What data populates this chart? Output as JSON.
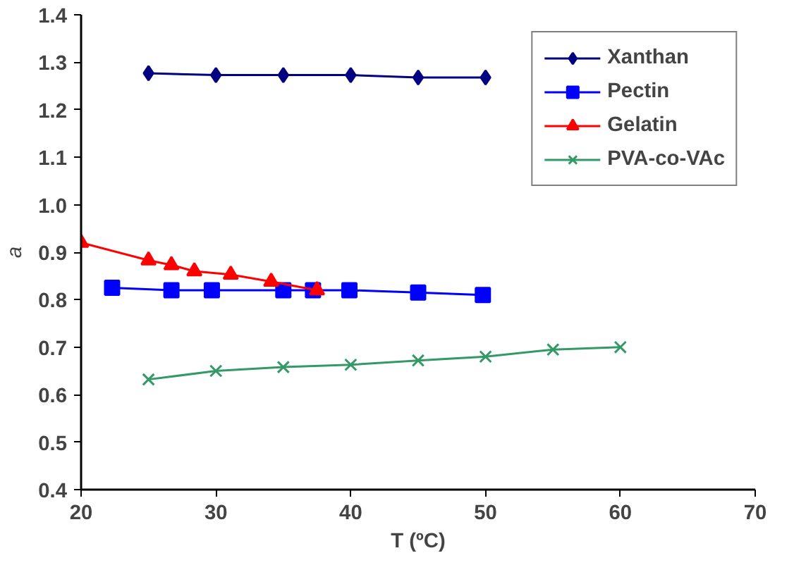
{
  "chart_data": {
    "type": "line",
    "xlabel": "T (ºC)",
    "ylabel": "a",
    "xlim": [
      20,
      70
    ],
    "xticks": [
      20,
      30,
      40,
      50,
      60,
      70
    ],
    "ylim": [
      0.4,
      1.4
    ],
    "yticks": [
      {
        "value": 0.4,
        "label": "0.4"
      },
      {
        "value": 0.5,
        "label": "0.5"
      },
      {
        "value": 0.6,
        "label": "0.6"
      },
      {
        "value": 0.7,
        "label": "0.7"
      },
      {
        "value": 0.8,
        "label": "0.8"
      },
      {
        "value": 0.9,
        "label": "0.9"
      },
      {
        "value": 1.0,
        "label": "1.0"
      },
      {
        "value": 1.1,
        "label": "1.1"
      },
      {
        "value": 1.2,
        "label": "1.2"
      },
      {
        "value": 1.3,
        "label": "1.3"
      },
      {
        "value": 1.4,
        "label": "1.4"
      }
    ],
    "grid": false,
    "legend": "top right",
    "series": [
      {
        "name": "Xanthan",
        "color": "#000080",
        "marker": "diamond",
        "x": [
          25,
          30,
          35,
          40,
          45,
          50
        ],
        "values": [
          1.277,
          1.273,
          1.273,
          1.273,
          1.268,
          1.268
        ]
      },
      {
        "name": "Pectin",
        "color": "#0000ff",
        "marker": "square",
        "x": [
          22.3,
          26.7,
          29.7,
          35,
          37.2,
          39.9,
          45,
          49.8
        ],
        "values": [
          0.825,
          0.82,
          0.82,
          0.82,
          0.82,
          0.82,
          0.815,
          0.81
        ]
      },
      {
        "name": "Gelatin",
        "color": "#ff0000",
        "marker": "triangle",
        "x": [
          20,
          25,
          26.7,
          28.4,
          31.1,
          34.1,
          37.5
        ],
        "values": [
          0.92,
          0.883,
          0.873,
          0.86,
          0.853,
          0.838,
          0.82
        ]
      },
      {
        "name": "PVA-co-VAc",
        "color": "#339966",
        "marker": "cross",
        "x": [
          25,
          30,
          35,
          40,
          45,
          50,
          55,
          60
        ],
        "values": [
          0.632,
          0.65,
          0.658,
          0.663,
          0.672,
          0.68,
          0.695,
          0.7
        ]
      }
    ]
  }
}
